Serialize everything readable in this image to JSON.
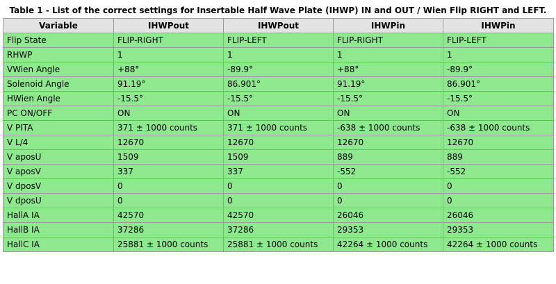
{
  "caption": "Table 1 - List of the correct settings for Insertable Half Wave Plate (IHWP) IN and OUT / Wien Flip RIGHT and LEFT.",
  "table": {
    "headers": [
      "Variable",
      "IHWPout",
      "IHWPout",
      "IHWPin",
      "IHWPin"
    ],
    "rows": [
      [
        "Flip State",
        "FLIP-RIGHT",
        "FLIP-LEFT",
        "FLIP-RIGHT",
        "FLIP-LEFT"
      ],
      [
        "RHWP",
        "1",
        "1",
        "1",
        "1"
      ],
      [
        "VWien Angle",
        "+88°",
        "-89.9°",
        "+88°",
        "-89.9°"
      ],
      [
        "Solenoid Angle",
        "91.19°",
        "86.901°",
        "91.19°",
        "86.901°"
      ],
      [
        "HWien Angle",
        "-15.5°",
        "-15.5°",
        "-15.5°",
        "-15.5°"
      ],
      [
        "PC ON/OFF",
        "ON",
        "ON",
        "ON",
        "ON"
      ],
      [
        "V PITA",
        "371 ± 1000 counts",
        "371 ± 1000 counts",
        "-638 ± 1000 counts",
        "-638 ± 1000 counts"
      ],
      [
        "V L/4",
        "12670",
        "12670",
        "12670",
        "12670"
      ],
      [
        "V aposU",
        "1509",
        "1509",
        "889",
        "889"
      ],
      [
        "V aposV",
        "337",
        "337",
        "-552",
        "-552"
      ],
      [
        "V dposV",
        "0",
        "0",
        "0",
        "0"
      ],
      [
        "V dposU",
        "0",
        "0",
        "0",
        "0"
      ],
      [
        "HallA IA",
        "42570",
        "42570",
        "26046",
        "26046"
      ],
      [
        "HallB IA",
        "37286",
        "37286",
        "29353",
        "29353"
      ],
      [
        "HallC IA",
        "25881 ± 1000 counts",
        "25881 ± 1000 counts",
        "42264 ± 1000 counts",
        "42264 ± 1000 counts"
      ]
    ]
  },
  "colors": {
    "header_bg": "#e3e3e3",
    "cell_bg": "#8ee98e",
    "border": "#9a9a9a"
  }
}
